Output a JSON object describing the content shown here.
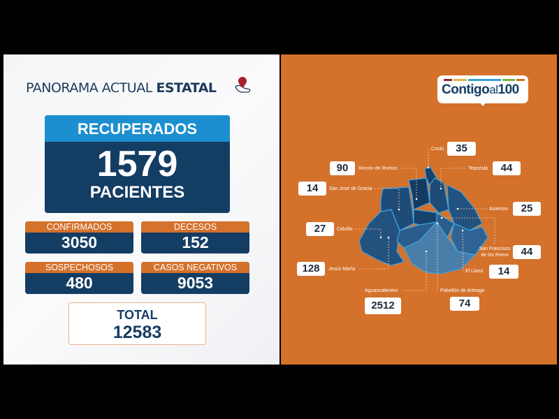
{
  "header": {
    "title_light": "PANORAMA ACTUAL",
    "title_bold": "ESTATAL",
    "icon": "hand-with-location-pin-icon"
  },
  "recuperados": {
    "label": "RECUPERADOS",
    "value": "1579",
    "unit": "PACIENTES"
  },
  "stats": [
    {
      "label": "CONFIRMADOS",
      "value": "3050"
    },
    {
      "label": "DECESOS",
      "value": "152"
    },
    {
      "label": "SOSPECHOSOS",
      "value": "480"
    },
    {
      "label": "CASOS NEGATIVOS",
      "value": "9053"
    }
  ],
  "total": {
    "label": "TOTAL",
    "value": "12583"
  },
  "logo": {
    "bold": "Contigo",
    "light": "al",
    "number": "100",
    "stripe_colors": [
      "#8b2a3a",
      "#e2b54a",
      "#3aa0d8",
      "#7cb342",
      "#d4712b"
    ]
  },
  "colors": {
    "orange": "#d4712b",
    "navy": "#143d64",
    "blue": "#1b8fcf"
  },
  "municipalities": [
    {
      "name": "Cosío",
      "value": "35"
    },
    {
      "name": "Rincón de Romos",
      "value": "90"
    },
    {
      "name": "Tepezalá",
      "value": "44"
    },
    {
      "name": "San José de Gracia",
      "value": "14"
    },
    {
      "name": "Asientos",
      "value": "25"
    },
    {
      "name": "Calvillo",
      "value": "27"
    },
    {
      "name": "San Francisco de los Romo",
      "value": "44"
    },
    {
      "name": "Jesús María",
      "value": "128"
    },
    {
      "name": "El Llano",
      "value": "14"
    },
    {
      "name": "Aguascalientes",
      "value": "2512"
    },
    {
      "name": "Pabellón de Arteaga",
      "value": "74"
    }
  ]
}
